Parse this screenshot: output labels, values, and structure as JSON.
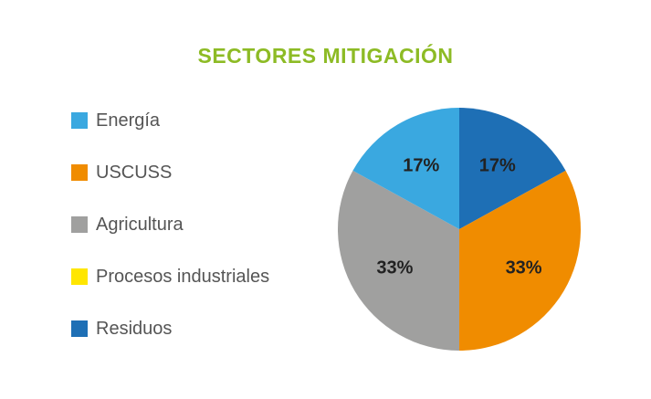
{
  "chart_data": {
    "type": "pie",
    "title": "SECTORES MITIGACIÓN",
    "title_color": "#8DBB25",
    "legend_position": "left",
    "slices": [
      {
        "label": "Energía",
        "value": 17,
        "display": "17%",
        "color": "#3AA8E0"
      },
      {
        "label": "USCUSS",
        "value": 33,
        "display": "33%",
        "color": "#F08C00"
      },
      {
        "label": "Agricultura",
        "value": 33,
        "display": "33%",
        "color": "#A0A09F"
      },
      {
        "label": "Procesos industriales",
        "value": 0,
        "display": "",
        "color": "#FFE600"
      },
      {
        "label": "Residuos",
        "value": 17,
        "display": "17%",
        "color": "#1E6FB5"
      }
    ]
  }
}
